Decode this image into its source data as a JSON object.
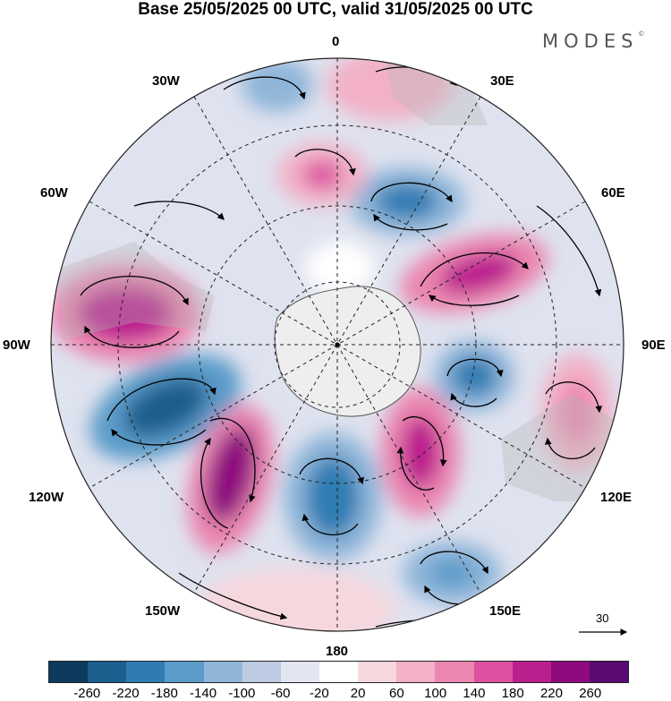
{
  "title": "Base 25/05/2025 00 UTC, valid 31/05/2025 00 UTC",
  "brand": "MODES",
  "brand_mark": "©",
  "longitude_labels": {
    "lon_0": "0",
    "lon_30e": "30E",
    "lon_60e": "60E",
    "lon_90e": "90E",
    "lon_120e": "120E",
    "lon_150e": "150E",
    "lon_180": "180",
    "lon_150w": "150W",
    "lon_120w": "120W",
    "lon_90w": "90W",
    "lon_60w": "60W",
    "lon_30w": "30W"
  },
  "reference_vector_label": "30",
  "colorbar": {
    "colors": [
      "#0d3b5e",
      "#1a5f8e",
      "#2f7cb3",
      "#5b9bc9",
      "#8fb6d9",
      "#bdcbe3",
      "#e3e5f1",
      "#ffffff",
      "#f7d7de",
      "#f2b1c6",
      "#eb86b1",
      "#dc52a0",
      "#bb1f8e",
      "#8e0a7e",
      "#5a0a73"
    ],
    "tick_labels": [
      "-260",
      "-220",
      "-180",
      "-140",
      "-100",
      "-60",
      "-20",
      "20",
      "60",
      "100",
      "140",
      "180",
      "220",
      "260"
    ]
  }
}
